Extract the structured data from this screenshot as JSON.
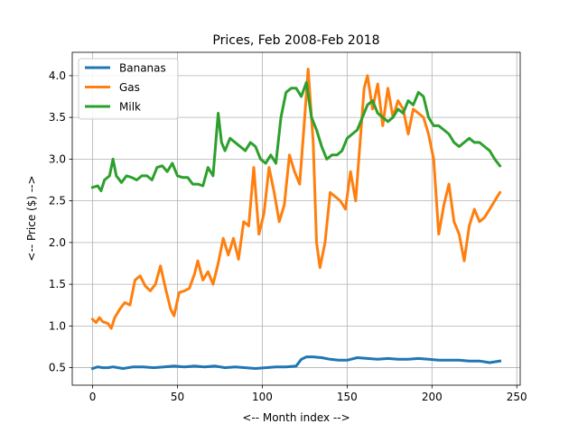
{
  "chart_data": {
    "type": "line",
    "title": "Prices, Feb 2008-Feb 2018",
    "xlabel": "<-- Month index -->",
    "ylabel": "<-- Price ($) -->",
    "xlim": [
      -12,
      252
    ],
    "ylim": [
      0.29,
      4.28
    ],
    "xticks": [
      0,
      50,
      100,
      150,
      200,
      250
    ],
    "yticks": [
      0.5,
      1.0,
      1.5,
      2.0,
      2.5,
      3.0,
      3.5,
      4.0
    ],
    "xtick_labels": [
      "0",
      "50",
      "100",
      "150",
      "200",
      "250"
    ],
    "ytick_labels": [
      "0.5",
      "1.0",
      "1.5",
      "2.0",
      "2.5",
      "3.0",
      "3.5",
      "4.0"
    ],
    "grid": true,
    "legend_position": "top-left",
    "series": [
      {
        "name": "Bananas",
        "color": "#1f77b4",
        "x": [
          0,
          3,
          6,
          9,
          12,
          15,
          18,
          24,
          30,
          36,
          42,
          48,
          54,
          60,
          66,
          72,
          78,
          84,
          90,
          96,
          102,
          108,
          114,
          120,
          123,
          126,
          130,
          135,
          140,
          145,
          150,
          156,
          162,
          168,
          174,
          180,
          186,
          192,
          198,
          204,
          210,
          216,
          222,
          228,
          234,
          240
        ],
        "values": [
          0.49,
          0.51,
          0.5,
          0.5,
          0.51,
          0.5,
          0.49,
          0.51,
          0.51,
          0.5,
          0.51,
          0.52,
          0.51,
          0.52,
          0.51,
          0.52,
          0.5,
          0.51,
          0.5,
          0.49,
          0.5,
          0.51,
          0.51,
          0.52,
          0.6,
          0.63,
          0.63,
          0.62,
          0.6,
          0.59,
          0.59,
          0.62,
          0.61,
          0.6,
          0.61,
          0.6,
          0.6,
          0.61,
          0.6,
          0.59,
          0.59,
          0.59,
          0.58,
          0.58,
          0.56,
          0.58
        ]
      },
      {
        "name": "Gas",
        "color": "#ff7f0e",
        "x": [
          0,
          2,
          4,
          6,
          9,
          11,
          13,
          16,
          19,
          22,
          25,
          28,
          31,
          34,
          37,
          40,
          43,
          46,
          48,
          51,
          54,
          57,
          60,
          62,
          65,
          68,
          71,
          74,
          77,
          80,
          83,
          86,
          89,
          92,
          95,
          98,
          101,
          104,
          107,
          110,
          113,
          116,
          119,
          122,
          125,
          127,
          130,
          132,
          134,
          137,
          140,
          143,
          146,
          149,
          152,
          155,
          158,
          160,
          162,
          165,
          168,
          171,
          174,
          177,
          180,
          183,
          186,
          189,
          192,
          195,
          198,
          201,
          204,
          207,
          210,
          213,
          216,
          219,
          222,
          225,
          228,
          231,
          234,
          237,
          240
        ],
        "values": [
          1.08,
          1.04,
          1.1,
          1.05,
          1.03,
          0.97,
          1.1,
          1.2,
          1.28,
          1.25,
          1.55,
          1.6,
          1.48,
          1.42,
          1.5,
          1.72,
          1.45,
          1.2,
          1.12,
          1.4,
          1.42,
          1.45,
          1.62,
          1.78,
          1.55,
          1.65,
          1.5,
          1.75,
          2.05,
          1.85,
          2.05,
          1.8,
          2.25,
          2.2,
          2.9,
          2.1,
          2.35,
          2.9,
          2.6,
          2.25,
          2.45,
          3.05,
          2.85,
          2.7,
          3.5,
          4.08,
          3.2,
          2.0,
          1.7,
          2.0,
          2.6,
          2.55,
          2.5,
          2.4,
          2.85,
          2.5,
          3.3,
          3.85,
          4.0,
          3.6,
          3.9,
          3.4,
          3.85,
          3.5,
          3.7,
          3.6,
          3.3,
          3.6,
          3.55,
          3.5,
          3.3,
          3.0,
          2.1,
          2.45,
          2.7,
          2.25,
          2.1,
          1.78,
          2.2,
          2.4,
          2.25,
          2.3,
          2.4,
          2.5,
          2.6
        ]
      },
      {
        "name": "Milk",
        "color": "#2ca02c",
        "x": [
          0,
          3,
          5,
          7,
          10,
          12,
          14,
          17,
          20,
          23,
          26,
          29,
          32,
          35,
          38,
          41,
          44,
          47,
          50,
          53,
          56,
          59,
          62,
          65,
          68,
          71,
          74,
          76,
          78,
          81,
          84,
          87,
          90,
          93,
          96,
          99,
          102,
          105,
          108,
          111,
          114,
          117,
          120,
          123,
          126,
          129,
          132,
          135,
          138,
          141,
          144,
          147,
          150,
          153,
          156,
          159,
          162,
          165,
          168,
          171,
          174,
          177,
          180,
          183,
          186,
          189,
          192,
          195,
          198,
          201,
          204,
          207,
          210,
          213,
          216,
          219,
          222,
          225,
          228,
          231,
          234,
          237,
          240
        ],
        "values": [
          2.66,
          2.68,
          2.62,
          2.75,
          2.8,
          3.0,
          2.8,
          2.72,
          2.8,
          2.78,
          2.75,
          2.8,
          2.8,
          2.75,
          2.9,
          2.92,
          2.85,
          2.95,
          2.8,
          2.78,
          2.78,
          2.7,
          2.7,
          2.68,
          2.9,
          2.8,
          3.55,
          3.2,
          3.1,
          3.25,
          3.2,
          3.15,
          3.1,
          3.2,
          3.15,
          3.0,
          2.95,
          3.05,
          2.95,
          3.5,
          3.8,
          3.85,
          3.85,
          3.75,
          3.92,
          3.5,
          3.35,
          3.15,
          3.0,
          3.05,
          3.05,
          3.1,
          3.25,
          3.3,
          3.35,
          3.5,
          3.65,
          3.7,
          3.55,
          3.5,
          3.45,
          3.5,
          3.6,
          3.55,
          3.7,
          3.65,
          3.8,
          3.75,
          3.5,
          3.4,
          3.4,
          3.35,
          3.3,
          3.2,
          3.15,
          3.2,
          3.25,
          3.2,
          3.2,
          3.15,
          3.1,
          3.0,
          2.92
        ]
      }
    ]
  }
}
